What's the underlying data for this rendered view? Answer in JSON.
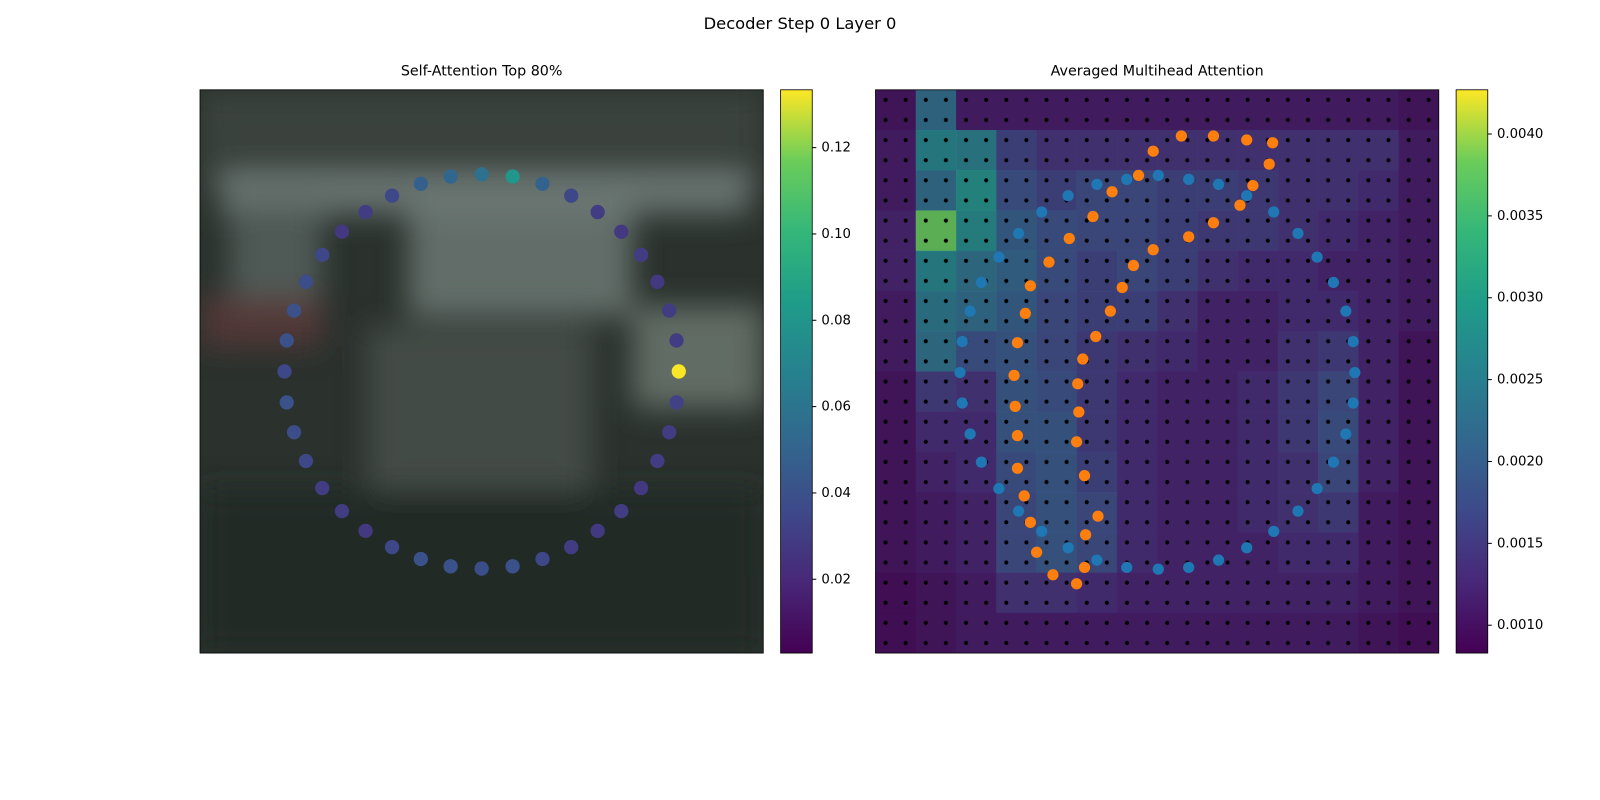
{
  "title": "Decoder Step 0 Layer 0",
  "chart_data": [
    {
      "type": "scatter",
      "title": "Self-Attention Top 80%",
      "x": [
        0.85,
        0.846,
        0.833,
        0.812,
        0.783,
        0.748,
        0.706,
        0.659,
        0.608,
        0.555,
        0.5,
        0.445,
        0.392,
        0.341,
        0.294,
        0.252,
        0.217,
        0.188,
        0.167,
        0.154,
        0.15,
        0.154,
        0.167,
        0.188,
        0.217,
        0.252,
        0.294,
        0.341,
        0.392,
        0.445,
        0.5,
        0.555,
        0.608,
        0.659,
        0.706,
        0.748,
        0.783,
        0.812,
        0.833,
        0.846
      ],
      "y": [
        0.5,
        0.445,
        0.392,
        0.341,
        0.293,
        0.252,
        0.217,
        0.188,
        0.167,
        0.154,
        0.15,
        0.154,
        0.167,
        0.188,
        0.217,
        0.252,
        0.293,
        0.341,
        0.392,
        0.445,
        0.5,
        0.555,
        0.608,
        0.659,
        0.707,
        0.748,
        0.783,
        0.812,
        0.833,
        0.846,
        0.85,
        0.846,
        0.833,
        0.812,
        0.783,
        0.748,
        0.707,
        0.659,
        0.608,
        0.555
      ],
      "values": [
        0.133,
        0.03,
        0.03,
        0.028,
        0.03,
        0.028,
        0.03,
        0.035,
        0.05,
        0.08,
        0.058,
        0.052,
        0.048,
        0.035,
        0.03,
        0.028,
        0.035,
        0.038,
        0.04,
        0.04,
        0.035,
        0.04,
        0.038,
        0.035,
        0.03,
        0.03,
        0.028,
        0.035,
        0.04,
        0.04,
        0.038,
        0.04,
        0.035,
        0.03,
        0.028,
        0.03,
        0.028,
        0.03,
        0.03,
        0.032
      ],
      "xlim": [
        0,
        1
      ],
      "ylim": [
        1,
        0
      ],
      "colormap": "viridis",
      "clim": [
        0.0029,
        0.1334
      ],
      "cticks": [
        0.02,
        0.04,
        0.06,
        0.08,
        {
          "value": 0.1,
          "label": "0.10"
        },
        0.12
      ]
    },
    {
      "type": "heatmap",
      "title": "Averaged Multihead Attention",
      "z": [
        [
          0.001,
          0.0022,
          0.0011,
          0.0011,
          0.0011,
          0.0011,
          0.0011,
          0.0011,
          0.0011,
          0.0011,
          0.0011,
          0.0011,
          0.0011,
          0.001
        ],
        [
          0.0011,
          0.0026,
          0.0025,
          0.0016,
          0.0014,
          0.0014,
          0.0014,
          0.0014,
          0.0014,
          0.0014,
          0.0014,
          0.0014,
          0.0014,
          0.0011
        ],
        [
          0.0011,
          0.0022,
          0.0028,
          0.0018,
          0.0016,
          0.0017,
          0.0017,
          0.0016,
          0.0016,
          0.0015,
          0.0014,
          0.0014,
          0.0013,
          0.0011
        ],
        [
          0.0012,
          0.0038,
          0.0027,
          0.002,
          0.0018,
          0.0017,
          0.0017,
          0.0016,
          0.0015,
          0.0015,
          0.0014,
          0.0013,
          0.0012,
          0.0011
        ],
        [
          0.0012,
          0.0026,
          0.0023,
          0.0021,
          0.0018,
          0.0016,
          0.0017,
          0.0016,
          0.0014,
          0.0013,
          0.0013,
          0.0012,
          0.0012,
          0.0011
        ],
        [
          0.0011,
          0.0024,
          0.0022,
          0.002,
          0.0017,
          0.0016,
          0.0016,
          0.0014,
          0.0012,
          0.0012,
          0.0013,
          0.0013,
          0.0012,
          0.0011
        ],
        [
          0.0011,
          0.0023,
          0.0018,
          0.0019,
          0.0017,
          0.0015,
          0.0014,
          0.0013,
          0.0012,
          0.0012,
          0.0014,
          0.0015,
          0.0012,
          0.001
        ],
        [
          0.001,
          0.0015,
          0.0014,
          0.0019,
          0.0018,
          0.0015,
          0.0013,
          0.0012,
          0.0012,
          0.0013,
          0.0015,
          0.0017,
          0.0012,
          0.001
        ],
        [
          0.001,
          0.0013,
          0.0013,
          0.0019,
          0.0019,
          0.0015,
          0.0013,
          0.0012,
          0.0012,
          0.0013,
          0.0015,
          0.0018,
          0.0012,
          0.001
        ],
        [
          0.001,
          0.0012,
          0.0013,
          0.0018,
          0.0019,
          0.0016,
          0.0013,
          0.0012,
          0.0012,
          0.0013,
          0.0014,
          0.0017,
          0.0012,
          0.001
        ],
        [
          0.001,
          0.0011,
          0.0012,
          0.0017,
          0.0019,
          0.0017,
          0.0013,
          0.0012,
          0.0012,
          0.0013,
          0.0014,
          0.0015,
          0.0011,
          0.001
        ],
        [
          0.001,
          0.0011,
          0.0012,
          0.0017,
          0.0019,
          0.0017,
          0.0013,
          0.0012,
          0.0012,
          0.0012,
          0.0013,
          0.0013,
          0.0011,
          0.001
        ],
        [
          0.0009,
          0.001,
          0.0011,
          0.0014,
          0.0014,
          0.0013,
          0.0012,
          0.0012,
          0.0012,
          0.0012,
          0.0012,
          0.0012,
          0.0011,
          0.001
        ],
        [
          0.0009,
          0.001,
          0.0011,
          0.0011,
          0.0011,
          0.0011,
          0.0011,
          0.0011,
          0.0011,
          0.0011,
          0.0011,
          0.0011,
          0.001,
          0.0009
        ]
      ],
      "series": [
        {
          "color": "#1f77b4",
          "x": [
            0.502,
            0.556,
            0.609,
            0.659,
            0.707,
            0.75,
            0.784,
            0.813,
            0.835,
            0.848,
            0.851,
            0.848,
            0.835,
            0.813,
            0.784,
            0.75,
            0.707,
            0.659,
            0.609,
            0.556,
            0.502,
            0.446,
            0.393,
            0.342,
            0.295,
            0.254,
            0.219,
            0.188,
            0.168,
            0.154,
            0.15,
            0.154,
            0.168,
            0.188,
            0.219,
            0.254,
            0.295,
            0.342,
            0.393,
            0.446
          ],
          "y": [
            0.152,
            0.159,
            0.168,
            0.188,
            0.217,
            0.255,
            0.297,
            0.342,
            0.393,
            0.447,
            0.502,
            0.556,
            0.611,
            0.661,
            0.708,
            0.748,
            0.784,
            0.813,
            0.835,
            0.848,
            0.851,
            0.848,
            0.835,
            0.813,
            0.784,
            0.748,
            0.708,
            0.661,
            0.611,
            0.556,
            0.502,
            0.447,
            0.393,
            0.342,
            0.297,
            0.255,
            0.217,
            0.188,
            0.168,
            0.159
          ]
        },
        {
          "color": "#ff7f0e",
          "x": [
            0.543,
            0.6,
            0.659,
            0.705,
            0.699,
            0.67,
            0.647,
            0.6,
            0.556,
            0.493,
            0.458,
            0.438,
            0.417,
            0.391,
            0.368,
            0.359,
            0.361,
            0.357,
            0.371,
            0.395,
            0.373,
            0.371,
            0.357,
            0.315,
            0.286,
            0.275,
            0.264,
            0.252,
            0.252,
            0.248,
            0.246,
            0.252,
            0.266,
            0.275,
            0.308,
            0.344,
            0.386,
            0.42,
            0.467,
            0.493
          ],
          "y": [
            0.082,
            0.082,
            0.089,
            0.094,
            0.132,
            0.17,
            0.205,
            0.236,
            0.261,
            0.284,
            0.312,
            0.351,
            0.393,
            0.438,
            0.478,
            0.522,
            0.572,
            0.625,
            0.685,
            0.757,
            0.79,
            0.848,
            0.877,
            0.861,
            0.821,
            0.768,
            0.721,
            0.672,
            0.614,
            0.562,
            0.507,
            0.449,
            0.397,
            0.348,
            0.306,
            0.264,
            0.225,
            0.181,
            0.152,
            0.109
          ]
        }
      ],
      "xlim": [
        0,
        1
      ],
      "ylim": [
        1,
        0
      ],
      "colormap": "viridis",
      "clim": [
        0.00083,
        0.00427
      ],
      "cticks": [
        {
          "value": 0.001,
          "label": "0.0010"
        },
        0.0015,
        {
          "value": 0.002,
          "label": "0.0020"
        },
        0.0025,
        {
          "value": 0.003,
          "label": "0.0030"
        },
        0.0035,
        {
          "value": 0.004,
          "label": "0.0040"
        }
      ]
    }
  ]
}
